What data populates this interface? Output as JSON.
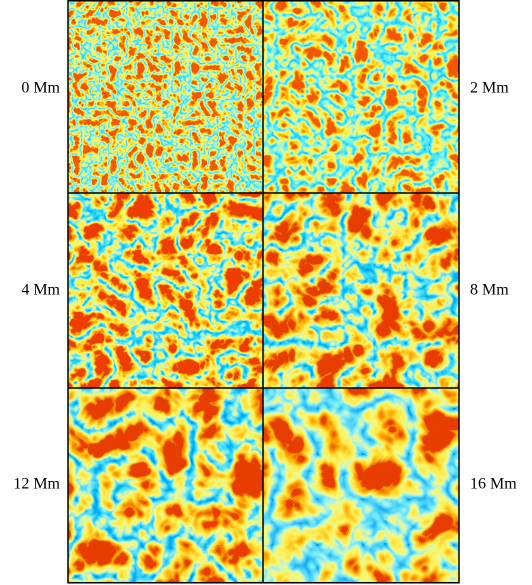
{
  "panels": [
    {
      "label": "0 Mm"
    },
    {
      "label": "2 Mm"
    },
    {
      "label": "4 Mm"
    },
    {
      "label": "8 Mm"
    },
    {
      "label": "12 Mm"
    },
    {
      "label": "16 Mm"
    }
  ]
}
